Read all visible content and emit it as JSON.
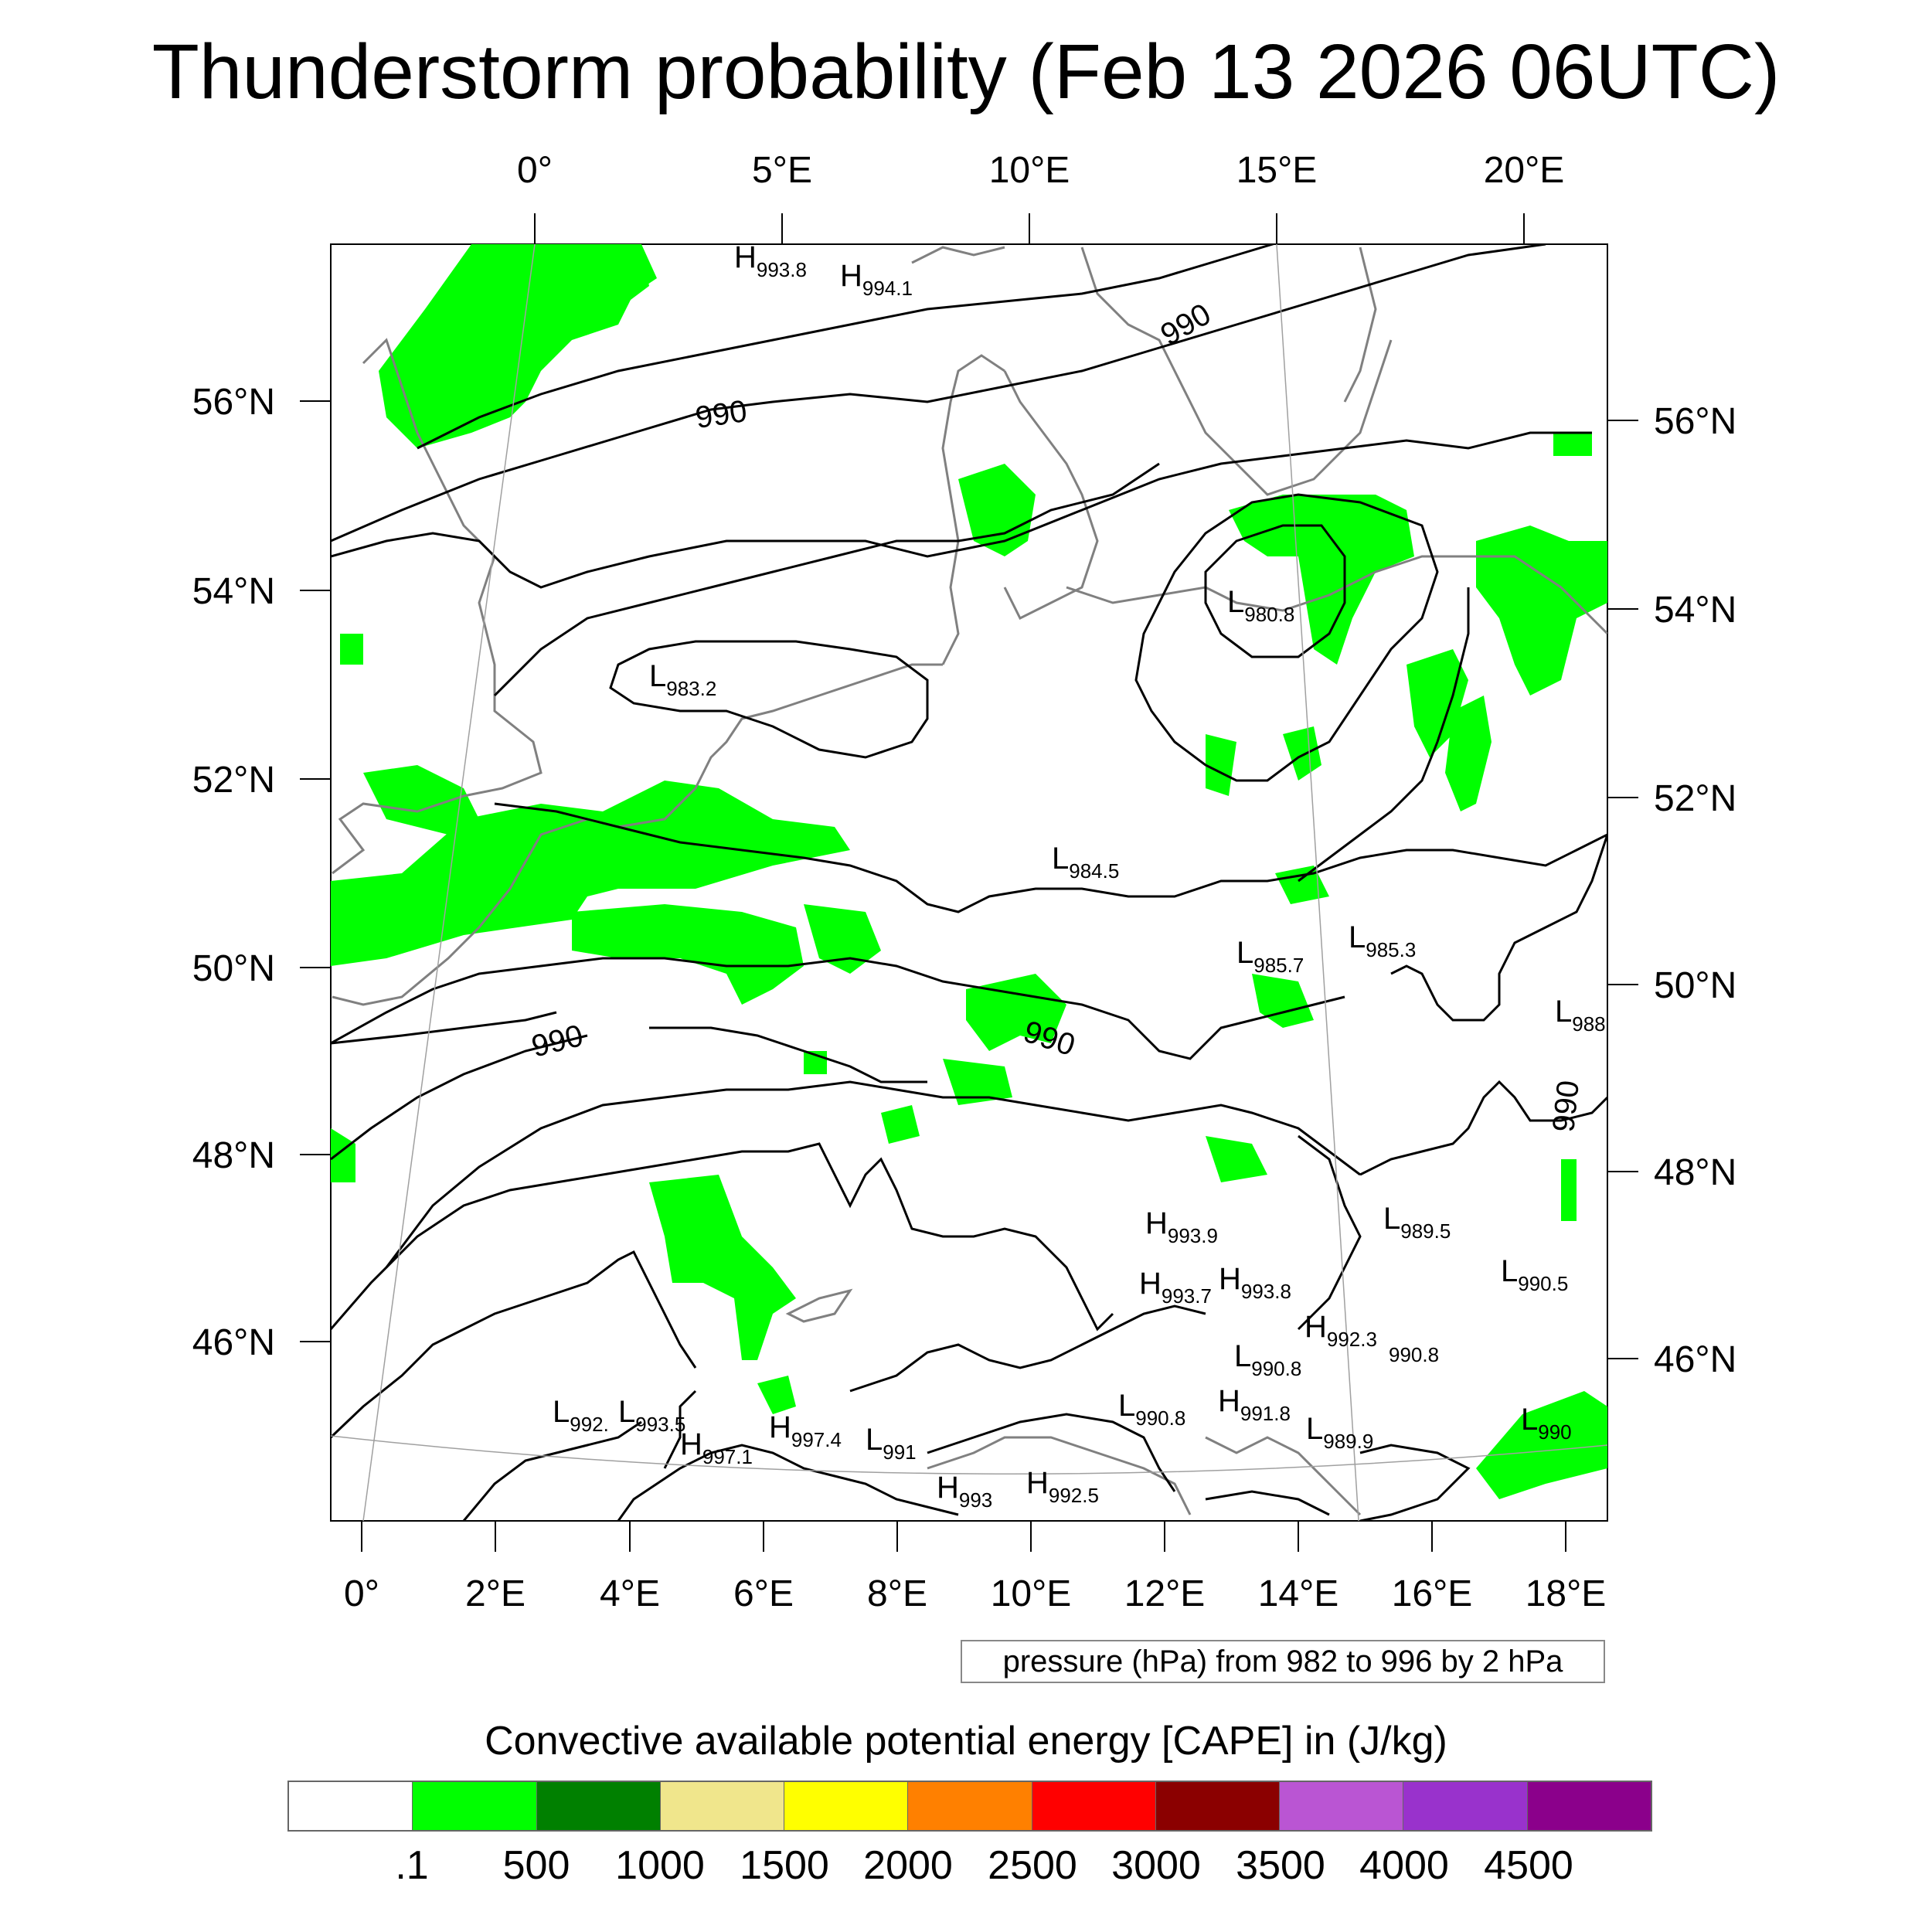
{
  "title": "Thunderstorm probability (Feb 13 2026 06UTC)",
  "map": {
    "top_lon_labels": [
      "0°",
      "5°E",
      "10°E",
      "15°E",
      "20°E"
    ],
    "bottom_lon_labels": [
      "0°",
      "2°E",
      "4°E",
      "6°E",
      "8°E",
      "10°E",
      "12°E",
      "14°E",
      "16°E",
      "18°E"
    ],
    "left_lat_labels": [
      "56°N",
      "54°N",
      "52°N",
      "50°N",
      "48°N",
      "46°N"
    ],
    "right_lat_labels": [
      "56°N",
      "54°N",
      "52°N",
      "50°N",
      "48°N",
      "46°N"
    ],
    "contour_labels": [
      "990",
      "990",
      "990",
      "990",
      "990"
    ],
    "pressure_centers": [
      {
        "type": "H",
        "value": "993.8"
      },
      {
        "type": "H",
        "value": "994.1"
      },
      {
        "type": "L",
        "value": "983.2"
      },
      {
        "type": "L",
        "value": "980.8"
      },
      {
        "type": "L",
        "value": "984.5"
      },
      {
        "type": "L",
        "value": "985.7"
      },
      {
        "type": "L",
        "value": "985.3"
      },
      {
        "type": "L",
        "value": "988"
      },
      {
        "type": "H",
        "value": "993.9"
      },
      {
        "type": "L",
        "value": "989.5"
      },
      {
        "type": "H",
        "value": "993.7"
      },
      {
        "type": "H",
        "value": "993.8"
      },
      {
        "type": "L",
        "value": "990.5"
      },
      {
        "type": "H",
        "value": "992.3"
      },
      {
        "type": "L",
        "value": "990.8"
      },
      {
        "type": "L",
        "value": "990.8"
      },
      {
        "type": "L",
        "value": "992."
      },
      {
        "type": "L",
        "value": "993.5"
      },
      {
        "type": "H",
        "value": "997.1"
      },
      {
        "type": "H",
        "value": "997.4"
      },
      {
        "type": "L",
        "value": "991"
      },
      {
        "type": "L",
        "value": "990.8"
      },
      {
        "type": "H",
        "value": "991.8"
      },
      {
        "type": "L",
        "value": "989.9"
      },
      {
        "type": "L",
        "value": "990"
      },
      {
        "type": "H",
        "value": "993"
      },
      {
        "type": "H",
        "value": "992.5"
      }
    ],
    "colors": {
      "cape_fill": "#00ff00",
      "contour": "#000000",
      "coastline": "#808080"
    }
  },
  "pressure_note": "pressure (hPa) from 982 to 996 by 2 hPa",
  "colorbar": {
    "title": "Convective available potential energy [CAPE] in (J/kg)",
    "colors": [
      "#ffffff",
      "#00ff00",
      "#008000",
      "#f0e68c",
      "#ffff00",
      "#ff8000",
      "#ff0000",
      "#8b0000",
      "#ba55d3",
      "#9932cc",
      "#8b008b"
    ],
    "labels": [
      ".1",
      "500",
      "1000",
      "1500",
      "2000",
      "2500",
      "3000",
      "3500",
      "4000",
      "4500"
    ]
  }
}
